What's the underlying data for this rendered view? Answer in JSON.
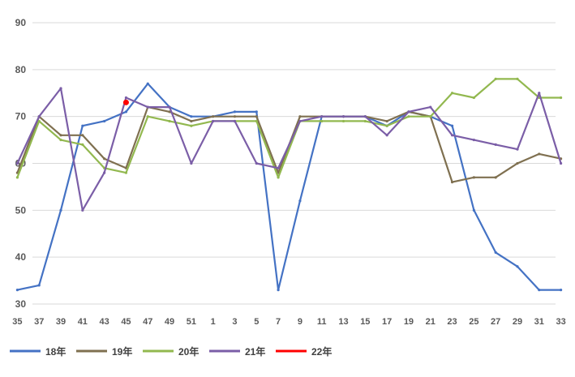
{
  "chart_data": {
    "type": "line",
    "title": "",
    "xlabel": "",
    "ylabel": "",
    "ylim": [
      30,
      90
    ],
    "yticks": [
      30,
      40,
      50,
      60,
      70,
      80,
      90
    ],
    "grid": "horizontal",
    "legend_position": "bottom-left",
    "x": [
      "35",
      "37",
      "39",
      "41",
      "43",
      "45",
      "47",
      "49",
      "51",
      "1",
      "3",
      "5",
      "7",
      "9",
      "11",
      "13",
      "15",
      "17",
      "19",
      "21",
      "23",
      "25",
      "27",
      "29",
      "31",
      "33"
    ],
    "series": [
      {
        "name": "18年",
        "color": "#4472C4",
        "values": [
          33,
          34,
          50,
          68,
          69,
          71,
          77,
          72,
          70,
          70,
          71,
          71,
          33,
          52,
          70,
          70,
          70,
          68,
          71,
          70,
          68,
          50,
          41,
          38,
          33,
          33
        ]
      },
      {
        "name": "19年",
        "color": "#7F7050",
        "values": [
          58,
          70,
          66,
          66,
          61,
          59,
          72,
          71,
          69,
          70,
          70,
          70,
          58,
          70,
          70,
          70,
          70,
          69,
          71,
          70,
          56,
          57,
          57,
          60,
          62,
          61
        ]
      },
      {
        "name": "20年",
        "color": "#92B84F",
        "values": [
          57,
          69,
          65,
          64,
          59,
          58,
          70,
          69,
          68,
          69,
          69,
          69,
          57,
          69,
          69,
          69,
          69,
          68,
          70,
          70,
          75,
          74,
          78,
          78,
          74,
          74
        ]
      },
      {
        "name": "21年",
        "color": "#7B5EA7",
        "values": [
          60,
          70,
          76,
          50,
          58,
          74,
          72,
          72,
          60,
          69,
          69,
          60,
          59,
          69,
          70,
          70,
          70,
          66,
          71,
          72,
          66,
          65,
          64,
          63,
          75,
          60
        ]
      },
      {
        "name": "22年",
        "color": "#FF0000",
        "values": [
          null,
          null,
          null,
          null,
          null,
          73,
          null,
          null,
          null,
          null,
          null,
          null,
          null,
          null,
          null,
          null,
          null,
          null,
          null,
          null,
          null,
          null,
          null,
          null,
          null,
          null
        ]
      }
    ]
  }
}
